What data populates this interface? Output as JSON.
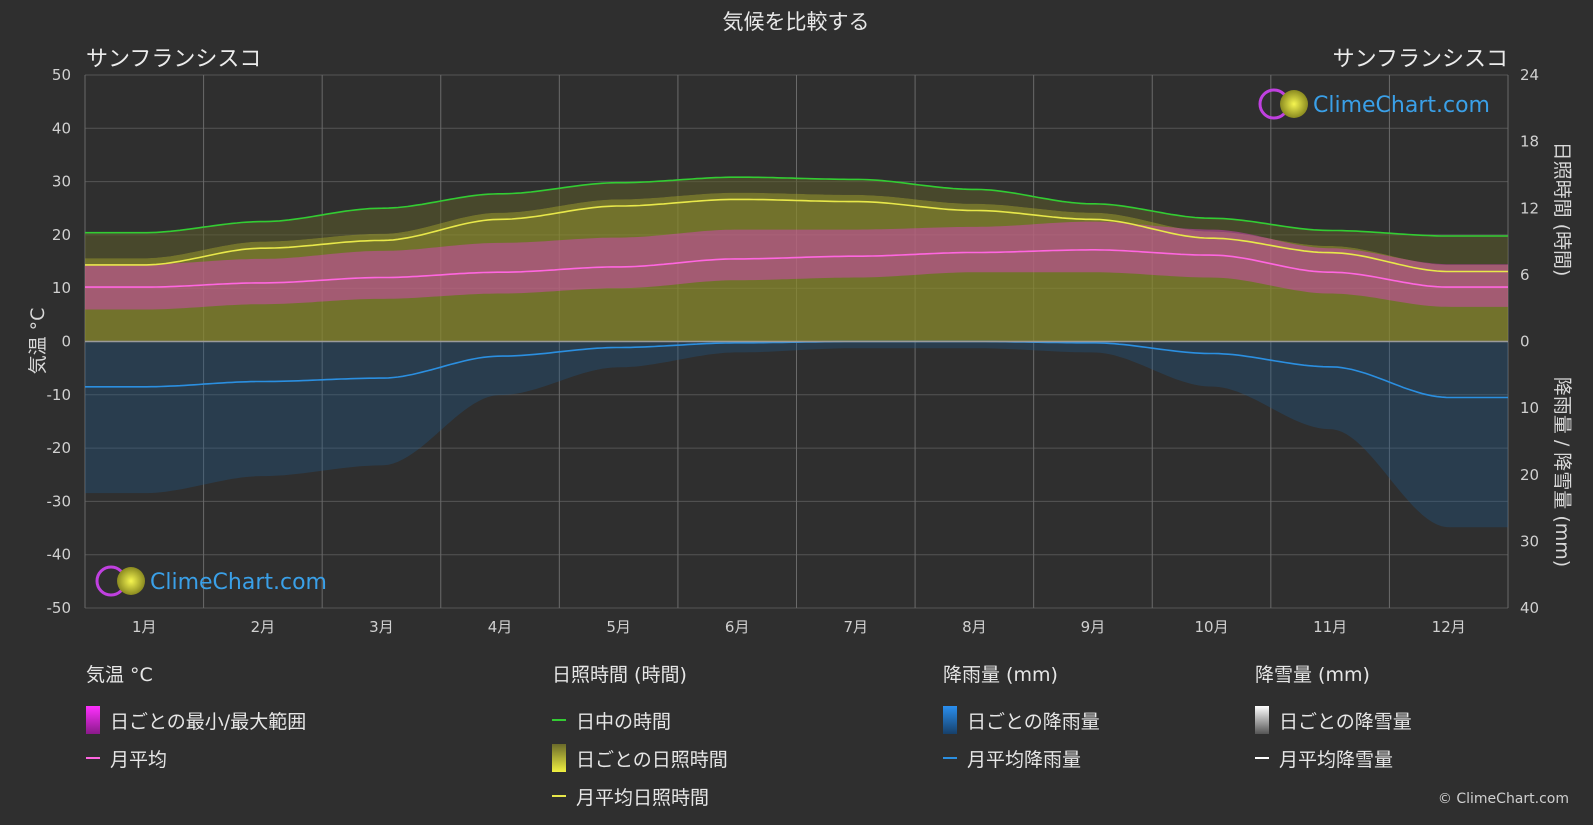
{
  "title": "気候を比較する",
  "city_left": "サンフランシスコ",
  "city_right": "サンフランシスコ",
  "logo_text": "ClimeChart.com",
  "copyright": "© ClimeChart.com",
  "colors": {
    "background": "#2f2f2f",
    "daylight": "#33cc33",
    "sunshine_avg": "#e8e84a",
    "sunshine_fill": "#8f8f2c",
    "temp_range": "#e040c8",
    "temp_avg": "#ff66e0",
    "rain": "#1f77c8",
    "rain_avg": "#2b8fe0",
    "snow_avg": "#ffffff",
    "logo": "#3aa0e8"
  },
  "chart_data": {
    "type": "area",
    "title": "気候を比較する",
    "months": [
      "1月",
      "2月",
      "3月",
      "4月",
      "5月",
      "6月",
      "7月",
      "8月",
      "9月",
      "10月",
      "11月",
      "12月"
    ],
    "y_left": {
      "label": "気温 °C",
      "range": [
        -50,
        50
      ],
      "ticks": [
        50,
        40,
        30,
        20,
        10,
        0,
        -10,
        -20,
        -30,
        -40,
        -50
      ]
    },
    "y_right_top": {
      "label": "日照時間 (時間)",
      "range": [
        0,
        24
      ],
      "ticks": [
        24,
        18,
        12,
        6,
        0
      ]
    },
    "y_right_bottom": {
      "label": "降雨量 / 降雪量 (mm)",
      "range": [
        0,
        40
      ],
      "ticks": [
        10,
        20,
        30,
        40
      ]
    },
    "series": [
      {
        "name": "日中の時間",
        "unit": "hours",
        "values": [
          9.8,
          10.8,
          12.0,
          13.3,
          14.3,
          14.8,
          14.6,
          13.7,
          12.4,
          11.1,
          10.0,
          9.5
        ]
      },
      {
        "name": "月平均日照時間",
        "unit": "hours",
        "values": [
          6.9,
          8.4,
          9.1,
          11.0,
          12.2,
          12.8,
          12.6,
          11.8,
          11.0,
          9.3,
          8.0,
          6.3
        ]
      },
      {
        "name": "月平均",
        "unit": "°C",
        "values": [
          10.2,
          11.0,
          12.0,
          13.0,
          14.0,
          15.5,
          16.0,
          16.7,
          17.2,
          16.2,
          13.0,
          10.2
        ]
      },
      {
        "name": "日ごとの最小/最大範囲",
        "unit": "°C",
        "min": [
          6.0,
          7.0,
          8.0,
          9.0,
          10.0,
          11.5,
          12.0,
          13.0,
          13.0,
          12.0,
          9.0,
          6.5
        ],
        "max": [
          14.5,
          15.5,
          17.0,
          18.5,
          19.5,
          21.0,
          21.0,
          21.5,
          22.5,
          21.0,
          17.5,
          14.5
        ]
      },
      {
        "name": "月平均降雨量",
        "unit": "mm",
        "values": [
          6.8,
          6.0,
          5.5,
          2.2,
          0.9,
          0.2,
          0.0,
          0.0,
          0.2,
          1.8,
          3.8,
          8.4
        ]
      },
      {
        "name": "月平均降雪量",
        "unit": "mm",
        "values": [
          0,
          0,
          0,
          0,
          0,
          0,
          0,
          0,
          0,
          0,
          0,
          0
        ]
      }
    ]
  },
  "legend": {
    "temp": {
      "title": "気温 °C",
      "range": "日ごとの最小/最大範囲",
      "avg": "月平均"
    },
    "sun": {
      "title": "日照時間 (時間)",
      "daylight": "日中の時間",
      "daily": "日ごとの日照時間",
      "avg": "月平均日照時間"
    },
    "rain": {
      "title": "降雨量 (mm)",
      "daily": "日ごとの降雨量",
      "avg": "月平均降雨量"
    },
    "snow": {
      "title": "降雪量 (mm)",
      "daily": "日ごとの降雪量",
      "avg": "月平均降雪量"
    }
  }
}
